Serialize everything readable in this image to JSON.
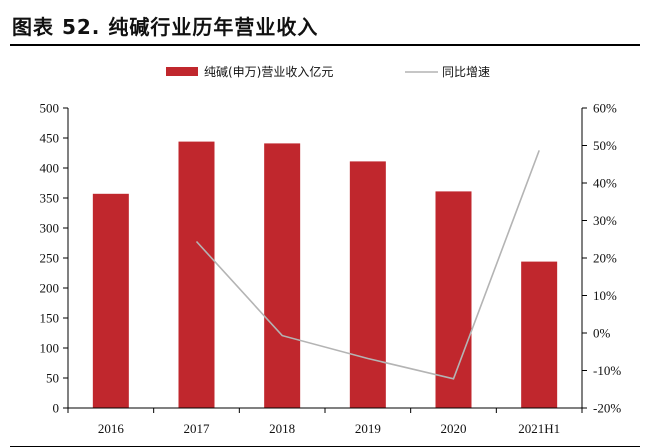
{
  "figure": {
    "title": "图表 52. 纯碱行业历年营业收入"
  },
  "chart_data": {
    "type": "bar",
    "categories": [
      "2016",
      "2017",
      "2018",
      "2019",
      "2020",
      "2021H1"
    ],
    "series": [
      {
        "name": "纯碱(申万)营业收入亿元",
        "type": "bar",
        "axis": "left",
        "color": "#c0272d",
        "values": [
          357,
          444,
          441,
          411,
          361,
          244
        ]
      },
      {
        "name": "同比增速",
        "type": "line",
        "axis": "right",
        "color": "#b4b4b4",
        "unit": "%",
        "values": [
          null,
          24.4,
          -0.7,
          -6.8,
          -12.2,
          48.7
        ]
      }
    ],
    "y_left": {
      "min": 0,
      "max": 500,
      "step": 50,
      "ticks": [
        "0",
        "50",
        "100",
        "150",
        "200",
        "250",
        "300",
        "350",
        "400",
        "450",
        "500"
      ]
    },
    "y_right": {
      "min": -20,
      "max": 60,
      "step": 10,
      "ticks": [
        "-20%",
        "-10%",
        "0%",
        "10%",
        "20%",
        "30%",
        "40%",
        "50%",
        "60%"
      ]
    },
    "grid": false,
    "legend_position": "top"
  }
}
